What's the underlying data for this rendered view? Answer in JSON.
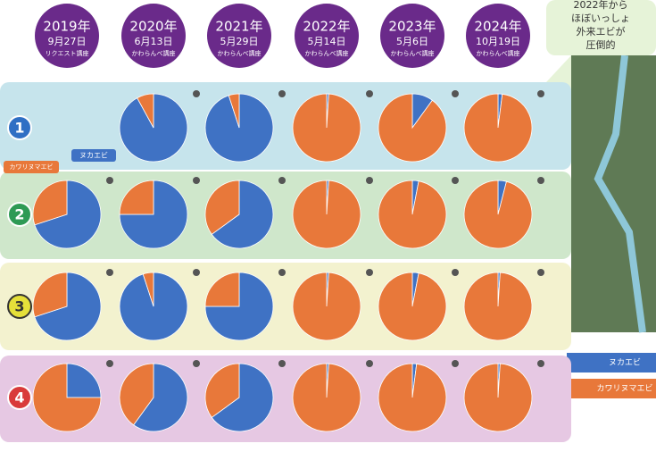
{
  "chart_data": {
    "type": "pie",
    "series": [
      {
        "name": "ヌカエビ",
        "color": "#3f72c4"
      },
      {
        "name": "カワリヌマエビ",
        "color": "#e8783a"
      }
    ],
    "columns": [
      {
        "year": "2019年",
        "date": "9月27日",
        "event": "リクエスト講座"
      },
      {
        "year": "2020年",
        "date": "6月13日",
        "event": "かわらんべ講座"
      },
      {
        "year": "2021年",
        "date": "5月29日",
        "event": "かわらんべ講座"
      },
      {
        "year": "2022年",
        "date": "5月14日",
        "event": "かわらんべ講座"
      },
      {
        "year": "2023年",
        "date": "5月6日",
        "event": "かわらんべ講座"
      },
      {
        "year": "2024年",
        "date": "10月19日",
        "event": "かわらんべ講座"
      }
    ],
    "rows": [
      {
        "label": "1",
        "color": "#2f6fc4",
        "band": "#c6e4ec",
        "values": [
          null,
          [
            92,
            8
          ],
          [
            95,
            5
          ],
          [
            1,
            99
          ],
          [
            10,
            90
          ],
          [
            2,
            98
          ]
        ]
      },
      {
        "label": "2",
        "color": "#2e9a55",
        "band": "#cfe7cb",
        "values": [
          [
            70,
            30
          ],
          [
            75,
            25
          ],
          [
            65,
            35
          ],
          [
            1,
            99
          ],
          [
            3,
            97
          ],
          [
            4,
            96
          ]
        ]
      },
      {
        "label": "3",
        "color": "#e5e03a",
        "band": "#f3f2cf",
        "values": [
          [
            70,
            30
          ],
          [
            95,
            5
          ],
          [
            75,
            25
          ],
          [
            1,
            99
          ],
          [
            3,
            97
          ],
          [
            1,
            99
          ]
        ]
      },
      {
        "label": "4",
        "color": "#d93a3a",
        "band": "#e6c8e3",
        "values": [
          [
            25,
            75
          ],
          [
            60,
            40
          ],
          [
            65,
            35
          ],
          [
            1,
            99
          ],
          [
            2,
            98
          ],
          [
            1,
            99
          ]
        ]
      }
    ],
    "annotation": [
      "2022年から",
      "ほぼいっしょ",
      "外来エビが",
      "圧倒的"
    ]
  }
}
